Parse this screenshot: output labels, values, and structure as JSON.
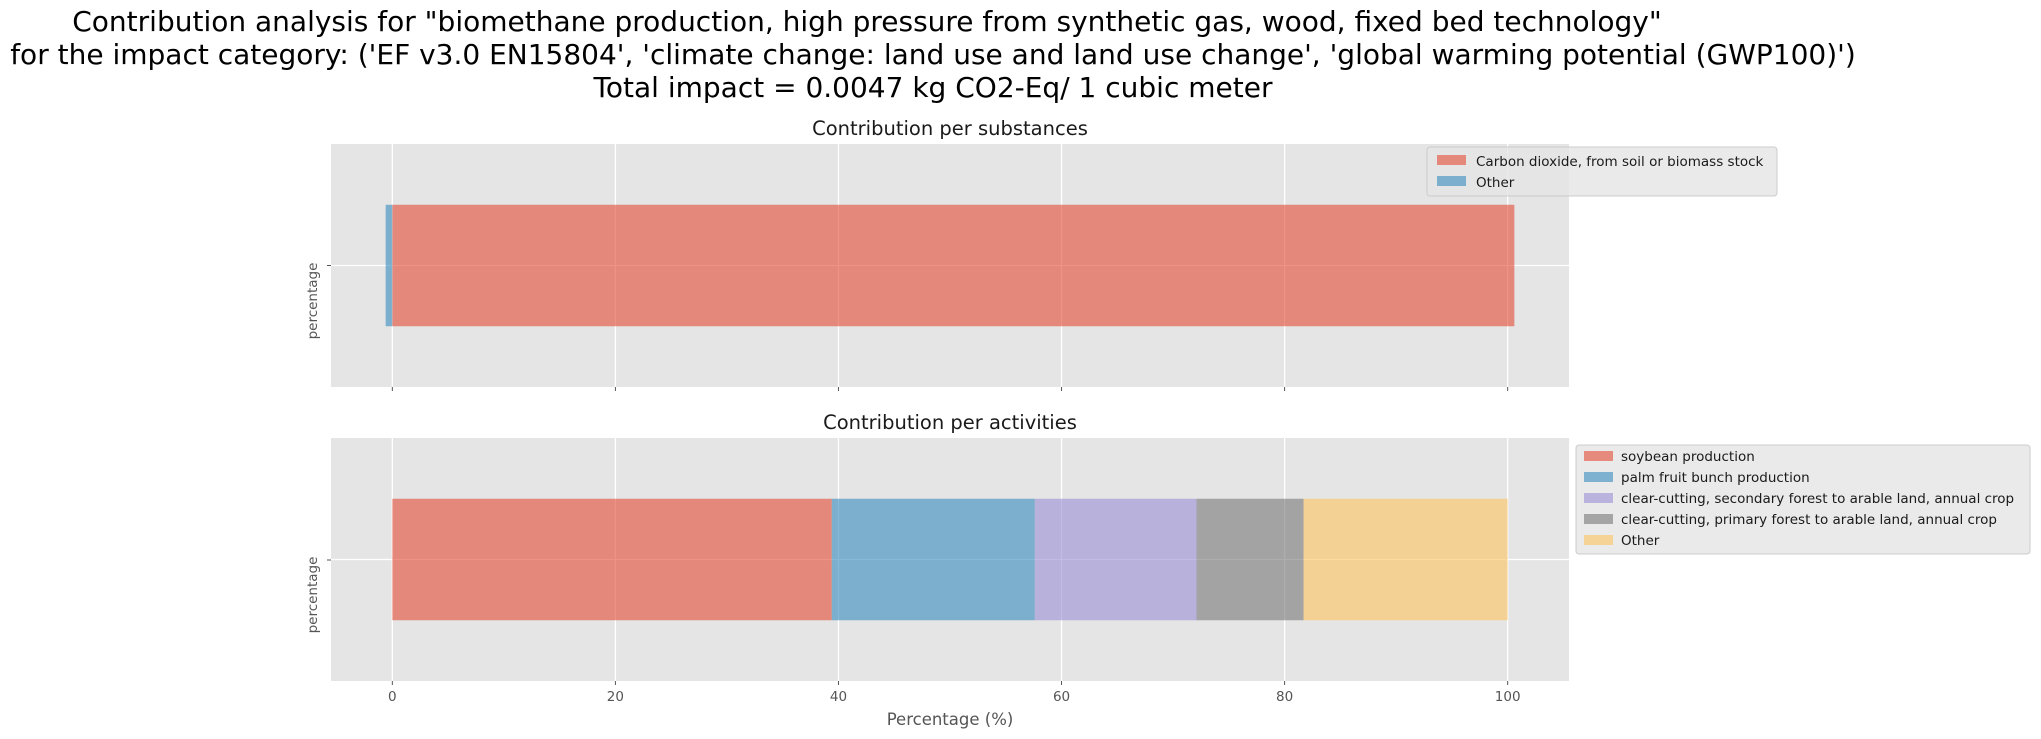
{
  "figure": {
    "title_lines": [
      "Contribution analysis for \"biomethane production, high pressure from synthetic gas, wood, fixed bed technology\"",
      "for the impact category: ('EF v3.0 EN15804', 'climate change: land use and land use change', 'global warming potential (GWP100)')",
      "Total impact = 0.0047 kg CO2-Eq/ 1 cubic meter"
    ],
    "background": "#ffffff",
    "axes_facecolor": "#e5e5e5",
    "grid_color": "#ffffff"
  },
  "chart_data": [
    {
      "type": "bar",
      "orientation": "horizontal",
      "stacked": true,
      "title": "Contribution per substances",
      "ylabel": "percentage",
      "xlabel": "",
      "xlim": [
        -5.5,
        105.5
      ],
      "xticks": [
        0,
        20,
        40,
        60,
        80,
        100
      ],
      "xtick_labels_visible": false,
      "grid": true,
      "legend_position": "upper-right",
      "series": [
        {
          "name": "Other",
          "value": -0.6,
          "color": "#348abd"
        },
        {
          "name": "Carbon dioxide, from soil or biomass stock",
          "value": 100.6,
          "color": "#e24a33"
        }
      ],
      "legend_order": [
        "Carbon dioxide, from soil or biomass stock",
        "Other"
      ]
    },
    {
      "type": "bar",
      "orientation": "horizontal",
      "stacked": true,
      "title": "Contribution per activities",
      "ylabel": "percentage",
      "xlabel": "Percentage (%)",
      "xlim": [
        -5.5,
        105.5
      ],
      "xticks": [
        0,
        20,
        40,
        60,
        80,
        100
      ],
      "xtick_labels_visible": true,
      "grid": true,
      "legend_position": "outside-right",
      "series": [
        {
          "name": "soybean production",
          "value": 39.4,
          "color": "#e24a33"
        },
        {
          "name": "palm fruit bunch production",
          "value": 18.2,
          "color": "#348abd"
        },
        {
          "name": "clear-cutting, secondary forest to arable land, annual crop",
          "value": 14.5,
          "color": "#988ed5"
        },
        {
          "name": "clear-cutting, primary forest to arable land, annual crop",
          "value": 9.6,
          "color": "#777777"
        },
        {
          "name": "Other",
          "value": 18.3,
          "color": "#fbc15e"
        }
      ],
      "legend_order": [
        "soybean production",
        "palm fruit bunch production",
        "clear-cutting, secondary forest to arable land, annual crop",
        "clear-cutting, primary forest to arable land, annual crop",
        "Other"
      ]
    }
  ]
}
